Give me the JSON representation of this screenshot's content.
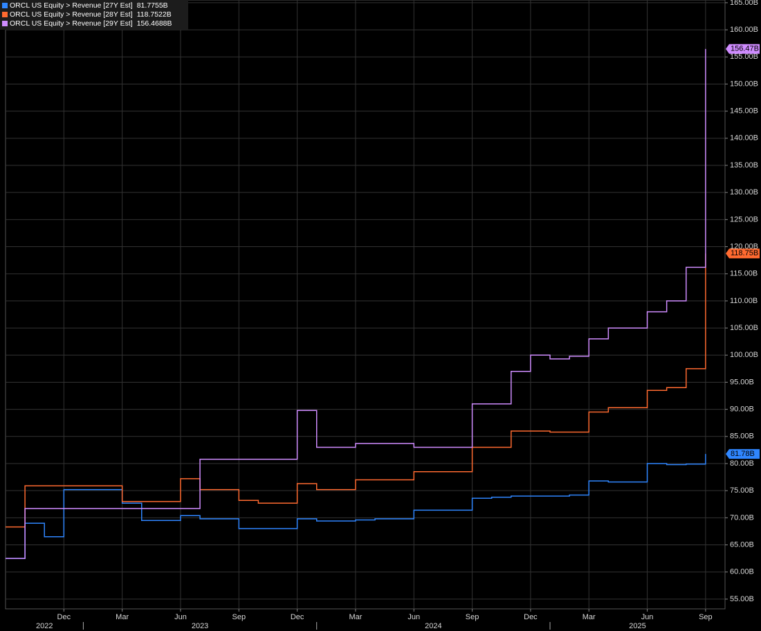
{
  "chart_data": {
    "type": "line",
    "step": true,
    "x": [
      "2022-09",
      "2022-10",
      "2022-11",
      "2022-12",
      "2023-01",
      "2023-02",
      "2023-03",
      "2023-04",
      "2023-05",
      "2023-06",
      "2023-07",
      "2023-08",
      "2023-09",
      "2023-10",
      "2023-11",
      "2023-12",
      "2024-01",
      "2024-02",
      "2024-03",
      "2024-04",
      "2024-05",
      "2024-06",
      "2024-07",
      "2024-08",
      "2024-09",
      "2024-10",
      "2024-11",
      "2024-12",
      "2025-01",
      "2025-02",
      "2025-03",
      "2025-04",
      "2025-05",
      "2025-06",
      "2025-07",
      "2025-08",
      "2025-09"
    ],
    "series": [
      {
        "name": "ORCL US Equity > Revenue [27Y Est]",
        "color": "#2f86ff",
        "legend_value": "81.7755B",
        "end_label": "81.78B",
        "values": [
          62.5,
          69,
          66.5,
          75.2,
          75.2,
          75.2,
          72.7,
          69.5,
          69.5,
          70.4,
          69.8,
          69.8,
          68,
          68,
          68,
          69.8,
          69.4,
          69.4,
          69.6,
          69.8,
          69.8,
          71.4,
          71.4,
          71.4,
          73.6,
          73.8,
          74,
          74,
          74,
          74.2,
          76.8,
          76.6,
          76.6,
          80,
          79.8,
          79.9,
          81.7755
        ]
      },
      {
        "name": "ORCL US Equity > Revenue [28Y Est]",
        "color": "#ff6a30",
        "legend_value": "118.7522B",
        "end_label": "118.75B",
        "values": [
          68.3,
          75.9,
          75.9,
          75.9,
          75.9,
          75.9,
          73,
          73,
          73,
          77.2,
          75.2,
          75.2,
          73.2,
          72.7,
          72.7,
          76.3,
          75.2,
          75.2,
          77,
          77,
          77,
          78.5,
          78.5,
          78.5,
          83,
          83,
          86,
          86,
          85.8,
          85.8,
          89.5,
          90.3,
          90.3,
          93.5,
          94,
          97.5,
          118.7522
        ]
      },
      {
        "name": "ORCL US Equity > Revenue [29Y Est]",
        "color": "#cf8cff",
        "legend_value": "156.4688B",
        "end_label": "156.47B",
        "values": [
          62.5,
          71.7,
          71.7,
          71.7,
          71.7,
          71.7,
          71.7,
          71.7,
          71.7,
          71.7,
          80.8,
          80.8,
          80.8,
          80.8,
          80.8,
          89.8,
          83,
          83,
          83.7,
          83.7,
          83.7,
          83,
          83,
          83,
          91,
          91,
          97,
          100,
          99.3,
          99.8,
          103,
          105,
          105,
          108,
          110,
          116.2,
          156.4688
        ]
      }
    ],
    "xlim": [
      "2022-09",
      "2025-10"
    ],
    "xticks": [
      {
        "value": "2022-12",
        "label": "Dec"
      },
      {
        "value": "2023-03",
        "label": "Mar"
      },
      {
        "value": "2023-06",
        "label": "Jun"
      },
      {
        "value": "2023-09",
        "label": "Sep"
      },
      {
        "value": "2023-12",
        "label": "Dec"
      },
      {
        "value": "2024-03",
        "label": "Mar"
      },
      {
        "value": "2024-06",
        "label": "Jun"
      },
      {
        "value": "2024-09",
        "label": "Sep"
      },
      {
        "value": "2024-12",
        "label": "Dec"
      },
      {
        "value": "2025-03",
        "label": "Mar"
      },
      {
        "value": "2025-06",
        "label": "Jun"
      },
      {
        "value": "2025-09",
        "label": "Sep"
      }
    ],
    "years": [
      "2022",
      "2023",
      "2024",
      "2025"
    ],
    "ylim": [
      53.2,
      165.5
    ],
    "yticks": [
      {
        "value": 55,
        "label": "55.00B"
      },
      {
        "value": 60,
        "label": "60.00B"
      },
      {
        "value": 65,
        "label": "65.00B"
      },
      {
        "value": 70,
        "label": "70.00B"
      },
      {
        "value": 75,
        "label": "75.00B"
      },
      {
        "value": 80,
        "label": "80.00B"
      },
      {
        "value": 85,
        "label": "85.00B"
      },
      {
        "value": 90,
        "label": "90.00B"
      },
      {
        "value": 95,
        "label": "95.00B"
      },
      {
        "value": 100,
        "label": "100.00B"
      },
      {
        "value": 105,
        "label": "105.00B"
      },
      {
        "value": 110,
        "label": "110.00B"
      },
      {
        "value": 115,
        "label": "115.00B"
      },
      {
        "value": 120,
        "label": "120.00B"
      },
      {
        "value": 125,
        "label": "125.00B"
      },
      {
        "value": 130,
        "label": "130.00B"
      },
      {
        "value": 135,
        "label": "135.00B"
      },
      {
        "value": 140,
        "label": "140.00B"
      },
      {
        "value": 145,
        "label": "145.00B"
      },
      {
        "value": 150,
        "label": "150.00B"
      },
      {
        "value": 155,
        "label": "155.00B"
      },
      {
        "value": 160,
        "label": "160.00B"
      },
      {
        "value": 165,
        "label": "165.00B"
      }
    ],
    "grid": true
  }
}
